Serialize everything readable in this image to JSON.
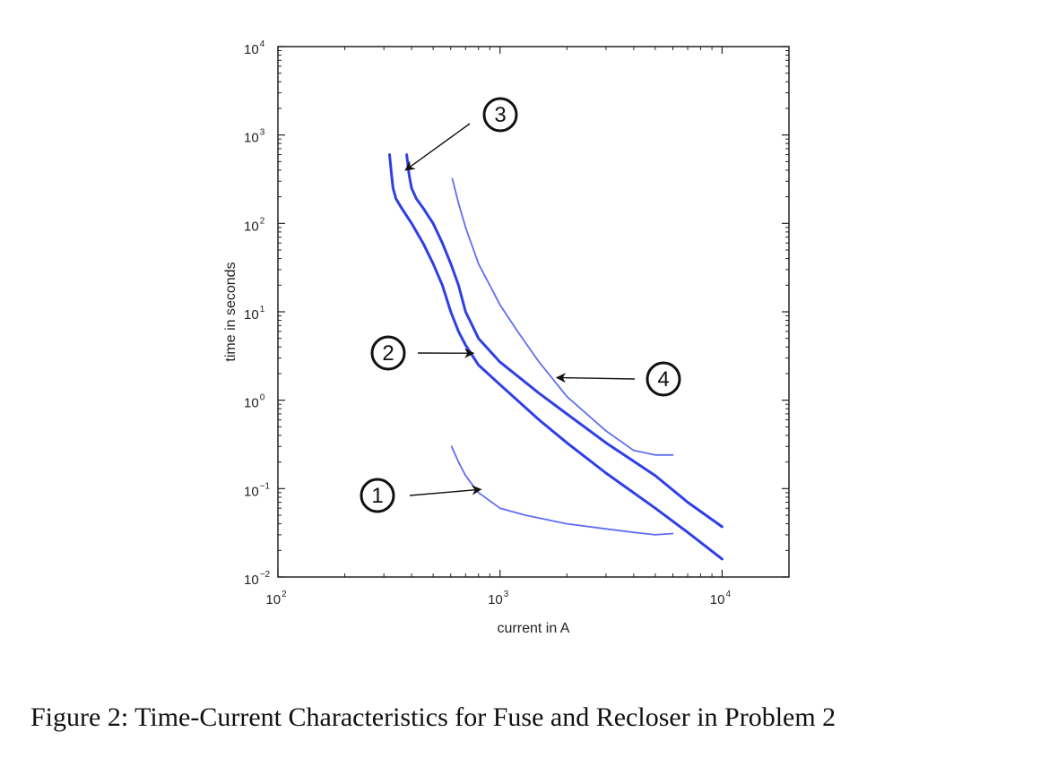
{
  "caption": "Figure 2: Time-Current Characteristics for Fuse and Recloser in Problem 2",
  "chart_data": {
    "type": "line",
    "title": "",
    "xlabel": "current in A",
    "ylabel": "time in seconds",
    "x_scale": "log",
    "y_scale": "log",
    "xlim": [
      100,
      20000
    ],
    "ylim": [
      0.01,
      10000
    ],
    "x_ticks": [
      {
        "value": 100,
        "base": "10",
        "exp": "2"
      },
      {
        "value": 1000,
        "base": "10",
        "exp": "3"
      },
      {
        "value": 10000,
        "base": "10",
        "exp": "4"
      }
    ],
    "y_ticks": [
      {
        "value": 0.01,
        "base": "10",
        "exp": "−2"
      },
      {
        "value": 0.1,
        "base": "10",
        "exp": "−1"
      },
      {
        "value": 1,
        "base": "10",
        "exp": "0"
      },
      {
        "value": 10,
        "base": "10",
        "exp": "1"
      },
      {
        "value": 100,
        "base": "10",
        "exp": "2"
      },
      {
        "value": 1000,
        "base": "10",
        "exp": "3"
      },
      {
        "value": 10000,
        "base": "10",
        "exp": "4"
      }
    ],
    "grid": false,
    "series": [
      {
        "marker": "1",
        "color": "#5f6ff0",
        "x": [
          605,
          650,
          700,
          800,
          1000,
          1300,
          2000,
          3000,
          4000,
          5000,
          6000
        ],
        "y": [
          0.3,
          0.2,
          0.14,
          0.09,
          0.06,
          0.05,
          0.04,
          0.035,
          0.032,
          0.03,
          0.031
        ]
      },
      {
        "marker": "2",
        "color": "#2f3fe6",
        "x": [
          318,
          325,
          330,
          340,
          360,
          400,
          450,
          500,
          550,
          600,
          650,
          700,
          800,
          1000,
          1500,
          2000,
          3000,
          5000,
          7000,
          10000
        ],
        "y": [
          600,
          350,
          250,
          190,
          150,
          100,
          60,
          35,
          20,
          10,
          6,
          4.2,
          2.5,
          1.5,
          0.6,
          0.33,
          0.15,
          0.06,
          0.032,
          0.016
        ]
      },
      {
        "marker": "3",
        "color": "#2f3fe6",
        "x": [
          380,
          390,
          400,
          420,
          450,
          500,
          550,
          600,
          650,
          700,
          750,
          800,
          1000,
          1500,
          2000,
          3000,
          5000,
          7000,
          10000
        ],
        "y": [
          600,
          350,
          250,
          190,
          150,
          100,
          60,
          35,
          20,
          10,
          7,
          5,
          2.7,
          1.2,
          0.7,
          0.33,
          0.14,
          0.07,
          0.037
        ]
      },
      {
        "marker": "4",
        "color": "#5f6ff0",
        "x": [
          610,
          650,
          700,
          800,
          1000,
          1200,
          1500,
          2000,
          3000,
          4000,
          5000,
          6000
        ],
        "y": [
          320,
          170,
          90,
          35,
          12,
          6,
          2.7,
          1.1,
          0.45,
          0.27,
          0.24,
          0.24
        ]
      }
    ],
    "annotations": [
      {
        "label": "1",
        "points_to": [
          820,
          0.098
        ]
      },
      {
        "label": "2",
        "points_to": [
          760,
          3.4
        ]
      },
      {
        "label": "3",
        "points_to": [
          375,
          400
        ]
      },
      {
        "label": "4",
        "points_to": [
          1800,
          1.8
        ]
      }
    ]
  }
}
